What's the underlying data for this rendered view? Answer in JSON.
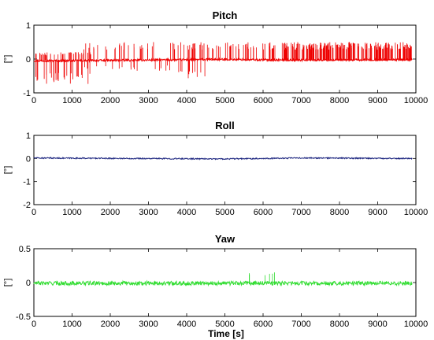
{
  "figure": {
    "xlabel": "Time [s]"
  },
  "chart_data": [
    {
      "type": "line",
      "title": "Pitch",
      "ylabel": "[°]",
      "xlabel": "",
      "xlim": [
        0,
        10000
      ],
      "ylim": [
        -1,
        1
      ],
      "xticks": [
        "0",
        "1000",
        "2000",
        "3000",
        "4000",
        "5000",
        "6000",
        "7000",
        "8000",
        "9000",
        "10000"
      ],
      "yticks": [
        "-1",
        "0",
        "1"
      ],
      "series": [
        {
          "color": "#ee0000",
          "x_range": [
            0,
            9900
          ],
          "baseline": [
            [
              0,
              -0.05
            ],
            [
              1000,
              -0.05
            ],
            [
              2000,
              -0.04
            ],
            [
              3000,
              -0.03
            ],
            [
              4000,
              -0.02
            ],
            [
              5000,
              -0.01
            ],
            [
              6400,
              -0.03
            ],
            [
              8000,
              -0.03
            ],
            [
              9900,
              -0.02
            ]
          ],
          "noise": 0.03,
          "spikes": [
            {
              "from": 0,
              "to": 1500,
              "count": 70,
              "low": -0.75,
              "high": 0.2
            },
            {
              "from": 1300,
              "to": 3500,
              "count": 45,
              "low": -0.35,
              "high": 0.5
            },
            {
              "from": 3500,
              "to": 4500,
              "count": 35,
              "low": -0.6,
              "high": 0.5
            },
            {
              "from": 4500,
              "to": 6400,
              "count": 90,
              "low": -0.05,
              "high": 0.5
            },
            {
              "from": 6450,
              "to": 9900,
              "count": 420,
              "low": -0.05,
              "high": 0.5
            }
          ]
        }
      ]
    },
    {
      "type": "line",
      "title": "Roll",
      "ylabel": "[°]",
      "xlabel": "",
      "xlim": [
        0,
        10000
      ],
      "ylim": [
        -2,
        1
      ],
      "xticks": [
        "0",
        "1000",
        "2000",
        "3000",
        "4000",
        "5000",
        "6000",
        "7000",
        "8000",
        "9000",
        "10000"
      ],
      "yticks": [
        "-2",
        "-1",
        "0",
        "1"
      ],
      "series": [
        {
          "color": "#1a237e",
          "x_range": [
            0,
            9900
          ],
          "baseline": [
            [
              0,
              0.02
            ],
            [
              5000,
              -0.02
            ],
            [
              7000,
              0.02
            ],
            [
              9900,
              0.0
            ]
          ],
          "noise": 0.025,
          "spikes": []
        }
      ]
    },
    {
      "type": "line",
      "title": "Yaw",
      "ylabel": "[°]",
      "xlabel": "Time [s]",
      "xlim": [
        0,
        10000
      ],
      "ylim": [
        -0.5,
        0.5
      ],
      "xticks": [
        "0",
        "1000",
        "2000",
        "3000",
        "4000",
        "5000",
        "6000",
        "7000",
        "8000",
        "9000",
        "10000"
      ],
      "yticks": [
        "-0.5",
        "0",
        "0.5"
      ],
      "series": [
        {
          "color": "#33dd33",
          "x_range": [
            0,
            9900
          ],
          "baseline": [
            [
              0,
              -0.01
            ],
            [
              5000,
              -0.01
            ],
            [
              9900,
              -0.01
            ]
          ],
          "noise": 0.03,
          "spikes": [
            {
              "from": 5300,
              "to": 6800,
              "count": 12,
              "low": -0.02,
              "high": 0.15
            }
          ]
        }
      ]
    }
  ]
}
